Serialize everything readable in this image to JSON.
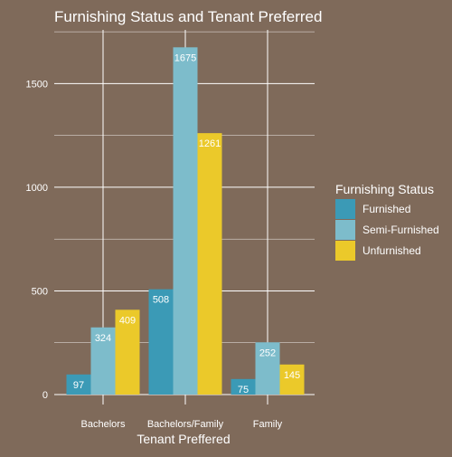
{
  "chart_data": {
    "type": "bar",
    "title": "Furnishing Status and Tenant Preferred",
    "xlabel": "Tenant Preffered",
    "ylabel": "",
    "categories": [
      "Bachelors",
      "Bachelors/Family",
      "Family"
    ],
    "series": [
      {
        "name": "Furnished",
        "values": [
          97,
          508,
          75
        ],
        "color": "#3b9ab6"
      },
      {
        "name": "Semi-Furnished",
        "values": [
          324,
          1675,
          252
        ],
        "color": "#7dbccb"
      },
      {
        "name": "Unfurnished",
        "values": [
          409,
          1261,
          145
        ],
        "color": "#ebc92a"
      }
    ],
    "ylim": [
      0,
      1750
    ],
    "yticks": [
      0,
      500,
      1000,
      1500
    ],
    "grid": true,
    "legend": {
      "title": "Furnishing Status",
      "position": "right"
    }
  },
  "colors": {
    "background": "#7f6a5a",
    "grid": "#ffffff",
    "text": "#ffffff"
  }
}
